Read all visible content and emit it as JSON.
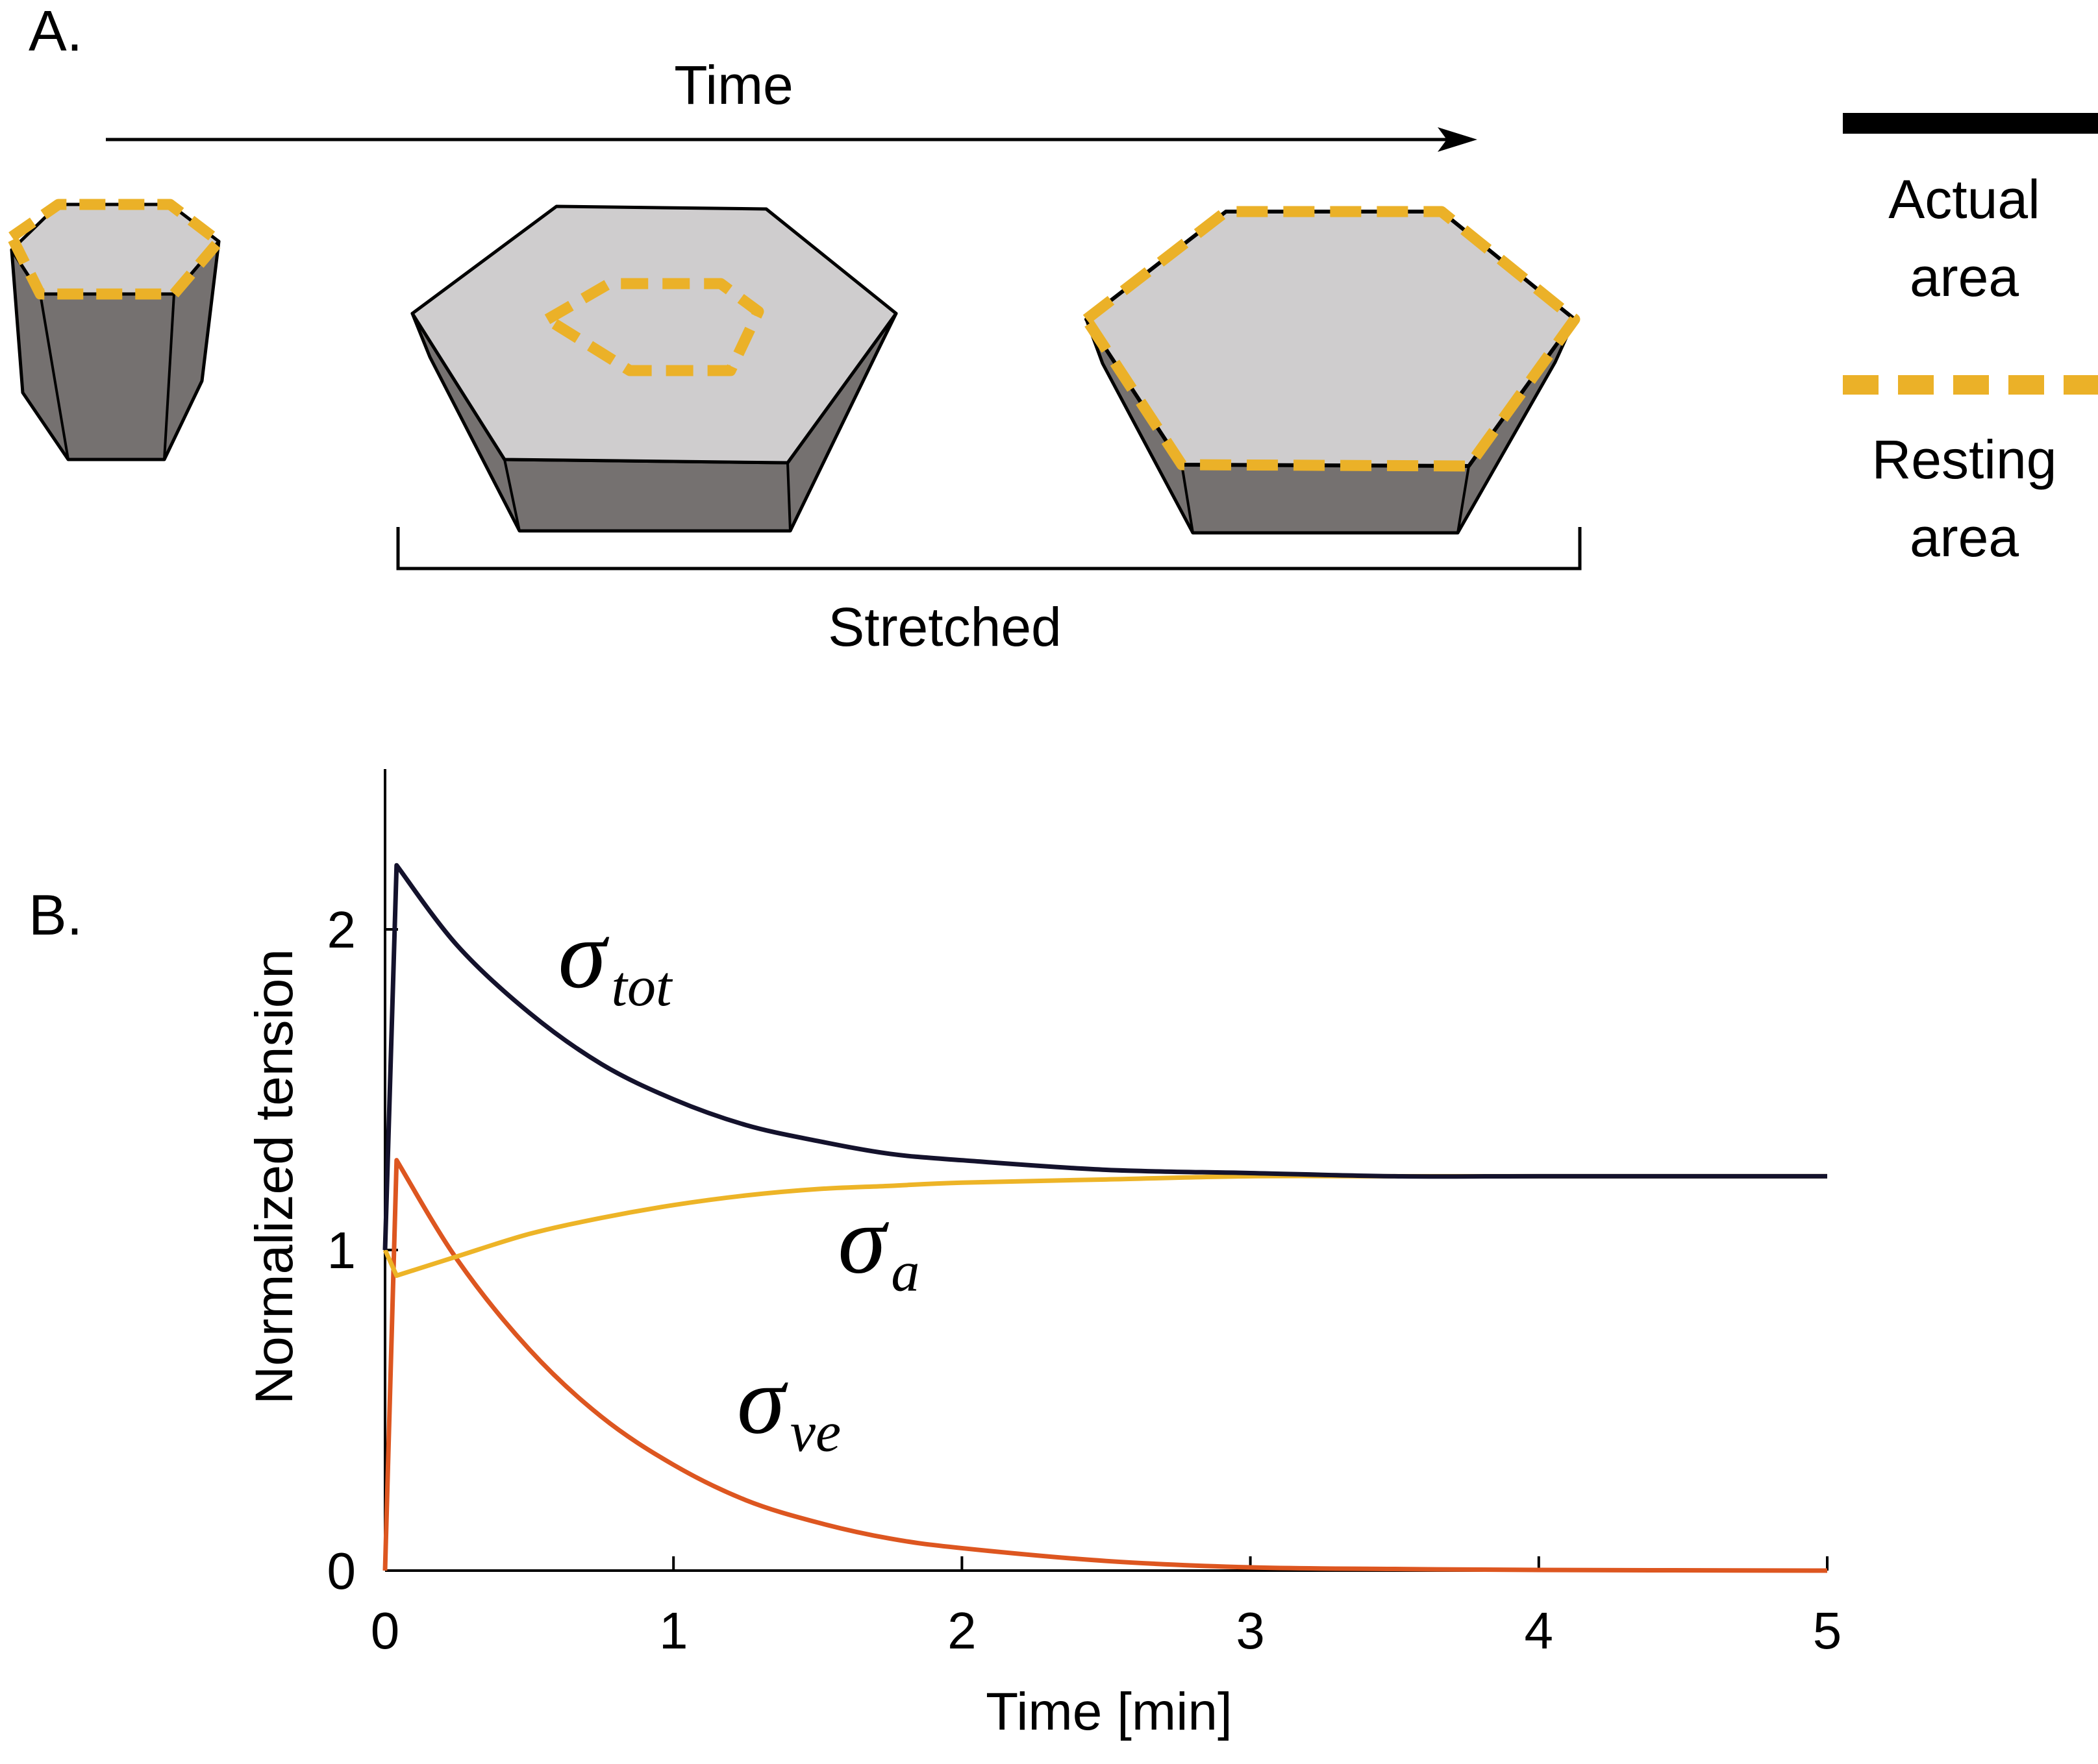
{
  "panel_a": {
    "label": "A.",
    "time_label": "Time",
    "stretched_label": "Stretched",
    "legend": {
      "actual": {
        "line1": "Actual",
        "line2": "area"
      },
      "resting": {
        "line1": "Resting",
        "line2": "area"
      }
    }
  },
  "colors": {
    "cell_top": "#cfcdce",
    "cell_side": "#757170",
    "outline": "#000000",
    "resting": "#ebb128",
    "sigma_tot": "#14122c",
    "sigma_a": "#edb427",
    "sigma_ve": "#dd5620"
  },
  "chart_data": {
    "type": "line",
    "panel_label": "B.",
    "xlabel": "Time [min]",
    "ylabel": "Normalized tension",
    "xlim": [
      0,
      5
    ],
    "ylim": [
      0,
      2.5
    ],
    "x_ticks": [
      "0",
      "1",
      "2",
      "3",
      "4",
      "5"
    ],
    "y_ticks": [
      "0",
      "1",
      "2"
    ],
    "series": [
      {
        "name": "σtot",
        "symbol": "σ",
        "subscript": "tot",
        "color_key": "sigma_tot",
        "x": [
          0,
          0.04,
          0.25,
          0.5,
          0.75,
          1.0,
          1.25,
          1.5,
          1.75,
          2.0,
          2.5,
          3.0,
          3.5,
          4.0,
          5.0
        ],
        "y": [
          1.0,
          2.2,
          1.95,
          1.74,
          1.58,
          1.47,
          1.39,
          1.34,
          1.3,
          1.28,
          1.25,
          1.24,
          1.23,
          1.23,
          1.23
        ]
      },
      {
        "name": "σa",
        "symbol": "σ",
        "subscript": "a",
        "color_key": "sigma_a",
        "x": [
          0,
          0.04,
          0.25,
          0.5,
          0.75,
          1.0,
          1.25,
          1.5,
          1.75,
          2.0,
          2.5,
          3.0,
          3.5,
          4.0,
          5.0
        ],
        "y": [
          1.0,
          0.92,
          0.98,
          1.05,
          1.1,
          1.14,
          1.17,
          1.19,
          1.2,
          1.21,
          1.22,
          1.23,
          1.23,
          1.23,
          1.23
        ]
      },
      {
        "name": "σve",
        "symbol": "σ",
        "subscript": "ve",
        "color_key": "sigma_ve",
        "x": [
          0,
          0.04,
          0.25,
          0.5,
          0.75,
          1.0,
          1.25,
          1.5,
          1.75,
          2.0,
          2.5,
          3.0,
          3.5,
          4.0,
          5.0
        ],
        "y": [
          0,
          1.28,
          0.97,
          0.69,
          0.48,
          0.33,
          0.22,
          0.15,
          0.1,
          0.07,
          0.03,
          0.01,
          0.005,
          0.002,
          0.0
        ]
      }
    ],
    "annotations": [
      {
        "series": "σtot",
        "x": 0.6,
        "y": 1.82
      },
      {
        "series": "σa",
        "x": 1.57,
        "y": 0.93
      },
      {
        "series": "σve",
        "x": 1.22,
        "y": 0.43
      }
    ]
  }
}
